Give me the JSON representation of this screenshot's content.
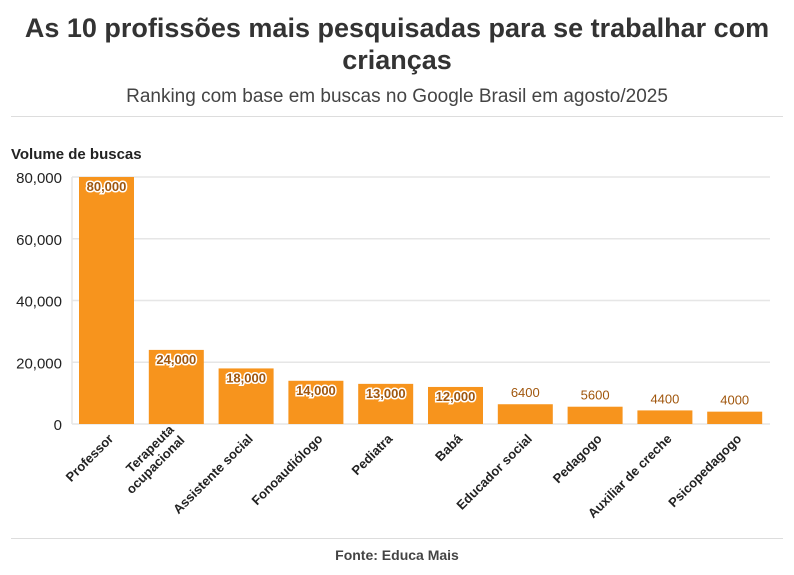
{
  "chart_data": {
    "type": "bar",
    "title": "As 10 profissões mais pesquisadas para se trabalhar com crianças",
    "subtitle": "Ranking com base em buscas no Google Brasil em agosto/2025",
    "ylabel": "Volume de buscas",
    "xlabel": "",
    "ylim": [
      0,
      80000
    ],
    "yticks": [
      0,
      20000,
      40000,
      60000,
      80000
    ],
    "ytick_labels": [
      "0",
      "20,000",
      "40,000",
      "60,000",
      "80,000"
    ],
    "categories": [
      "Professor",
      "Terapeuta ocupacional",
      "Assistente social",
      "Fonoaudiólogo",
      "Pediatra",
      "Babá",
      "Educador social",
      "Pedagogo",
      "Auxiliar de creche",
      "Psicopedagogo"
    ],
    "category_lines": [
      [
        "Professor"
      ],
      [
        "Terapeuta",
        "ocupacional"
      ],
      [
        "Assistente social"
      ],
      [
        "Fonoaudiólogo"
      ],
      [
        "Pediatra"
      ],
      [
        "Babá"
      ],
      [
        "Educador social"
      ],
      [
        "Pedagogo"
      ],
      [
        "Auxiliar de creche"
      ],
      [
        "Psicopedagogo"
      ]
    ],
    "values": [
      80000,
      24000,
      18000,
      14000,
      13000,
      12000,
      6400,
      5600,
      4400,
      4000
    ],
    "data_labels": [
      "80,000",
      "24,000",
      "18,000",
      "14,000",
      "13,000",
      "12,000",
      "6400",
      "5600",
      "4400",
      "4000"
    ],
    "grid": true,
    "bar_color": "#F7941D",
    "label_color": "#A0560C",
    "source": "Fonte: Educa Mais"
  }
}
